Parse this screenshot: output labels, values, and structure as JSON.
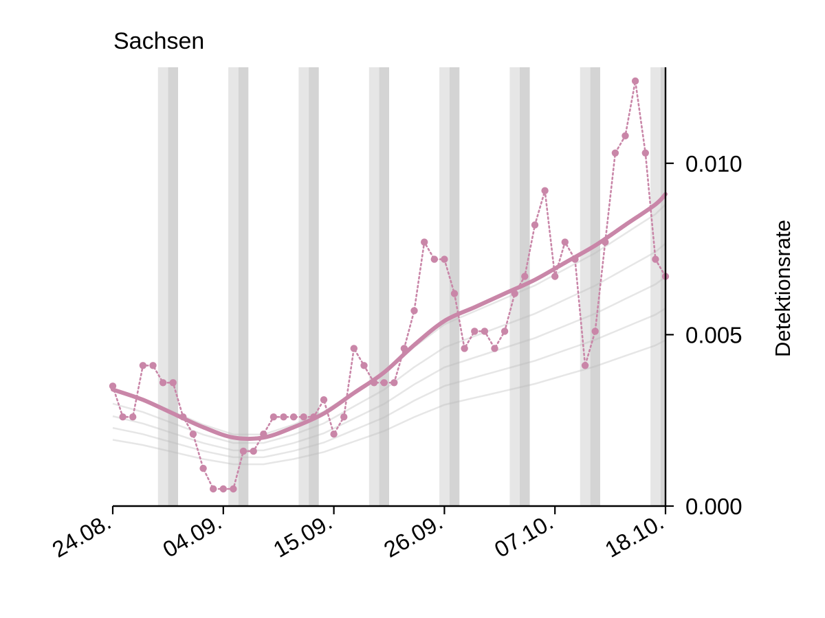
{
  "chart_data": {
    "type": "line",
    "title": "Sachsen",
    "ylabel": "Detektionsrate",
    "xlabel": "",
    "x_tick_labels": [
      "24.08.",
      "04.09.",
      "15.09.",
      "26.09.",
      "07.10.",
      "18.10."
    ],
    "y_tick_labels": [
      "0.000",
      "0.005",
      "0.010"
    ],
    "y_ticks": [
      0.0,
      0.005,
      0.01
    ],
    "ylim": [
      0.0,
      0.0128
    ],
    "xlim": [
      "24.08.",
      "18.10."
    ],
    "y_axis_position": "right",
    "grid": false,
    "legend": "none",
    "weekend_shading": true,
    "colors": {
      "highlight": "#c986a8",
      "background_series": "#b8b8b8",
      "weekend_light": "#e6e6e6",
      "weekend_dark": "#d4d4d4"
    },
    "series": [
      {
        "role": "daily",
        "style": "dotted-with-markers",
        "x": [
          "24.08.",
          "25.08.",
          "26.08.",
          "27.08.",
          "28.08.",
          "29.08.",
          "30.08.",
          "31.08.",
          "01.09.",
          "02.09.",
          "03.09.",
          "04.09.",
          "05.09.",
          "06.09.",
          "07.09.",
          "08.09.",
          "09.09.",
          "10.09.",
          "11.09.",
          "12.09.",
          "13.09.",
          "14.09.",
          "15.09.",
          "16.09.",
          "17.09.",
          "18.09.",
          "19.09.",
          "20.09.",
          "21.09.",
          "22.09.",
          "23.09.",
          "24.09.",
          "25.09.",
          "26.09.",
          "27.09.",
          "28.09.",
          "29.09.",
          "30.09.",
          "01.10.",
          "02.10.",
          "03.10.",
          "04.10.",
          "05.10.",
          "06.10.",
          "07.10.",
          "08.10.",
          "09.10.",
          "10.10.",
          "11.10.",
          "12.10.",
          "13.10.",
          "14.10.",
          "15.10.",
          "16.10.",
          "17.10.",
          "18.10."
        ],
        "y": [
          0.0035,
          0.0026,
          0.0026,
          0.0041,
          0.0041,
          0.0036,
          0.0036,
          0.0026,
          0.0021,
          0.0011,
          0.0005,
          0.0005,
          0.0005,
          0.0016,
          0.0016,
          0.0021,
          0.0026,
          0.0026,
          0.0026,
          0.0026,
          0.0026,
          0.0031,
          0.0021,
          0.0026,
          0.0046,
          0.0041,
          0.0036,
          0.0036,
          0.0036,
          0.0046,
          0.0057,
          0.0077,
          0.0072,
          0.0072,
          0.0062,
          0.0046,
          0.0051,
          0.0051,
          0.0046,
          0.0051,
          0.0062,
          0.0067,
          0.0082,
          0.0092,
          0.0067,
          0.0077,
          0.0072,
          0.0041,
          0.0051,
          0.0077,
          0.0103,
          0.0108,
          0.0124,
          0.0103,
          0.0072,
          0.0067
        ]
      },
      {
        "role": "smoothed",
        "style": "solid",
        "x": [
          "24.08.",
          "27.08.",
          "30.08.",
          "02.09.",
          "05.09.",
          "08.09.",
          "11.09.",
          "14.09.",
          "17.09.",
          "20.09.",
          "23.09.",
          "26.09.",
          "29.09.",
          "02.10.",
          "05.10.",
          "08.10.",
          "11.10.",
          "14.10.",
          "17.10.",
          "18.10."
        ],
        "y": [
          0.0034,
          0.0031,
          0.0027,
          0.0023,
          0.002,
          0.002,
          0.0023,
          0.0027,
          0.0033,
          0.0039,
          0.0047,
          0.0054,
          0.0058,
          0.0062,
          0.0066,
          0.0071,
          0.0076,
          0.0082,
          0.0088,
          0.0091
        ]
      }
    ]
  }
}
